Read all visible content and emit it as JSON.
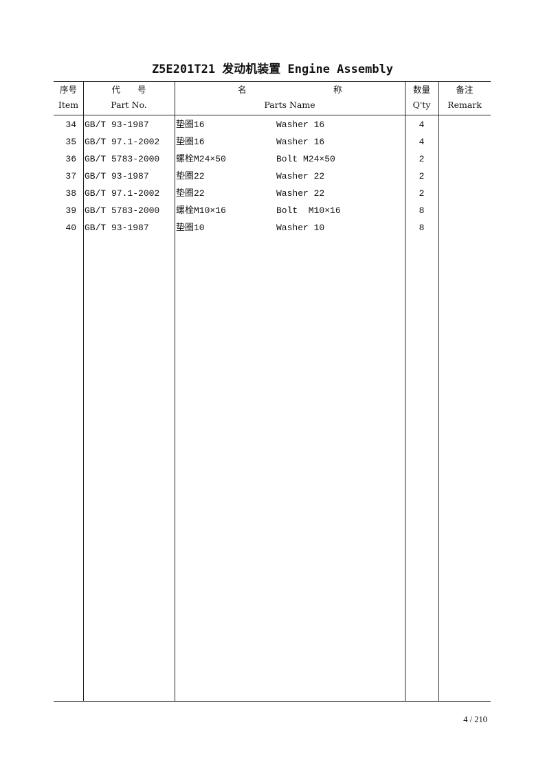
{
  "title": "Z5E201T21 发动机装置  Engine Assembly",
  "headers": {
    "item_cn": "序号",
    "item_en": "Item",
    "part_cn": "代　　号",
    "part_en": "Part No.",
    "name_cn_1": "名",
    "name_cn_2": "称",
    "name_en": "Parts Name",
    "qty_cn": "数量",
    "qty_en": "Q'ty",
    "remark_cn": "备注",
    "remark_en": "Remark"
  },
  "rows": [
    {
      "item": "34",
      "part": "GB/T 93-1987",
      "name_cn": "垫圈16",
      "name_en": "Washer 16",
      "qty": "4",
      "remark": ""
    },
    {
      "item": "35",
      "part": "GB/T 97.1-2002",
      "name_cn": "垫圈16",
      "name_en": "Washer 16",
      "qty": "4",
      "remark": ""
    },
    {
      "item": "36",
      "part": "GB/T 5783-2000",
      "name_cn": "螺栓M24×50",
      "name_en": "Bolt M24×50",
      "qty": "2",
      "remark": ""
    },
    {
      "item": "37",
      "part": "GB/T 93-1987",
      "name_cn": "垫圈22",
      "name_en": "Washer 22",
      "qty": "2",
      "remark": ""
    },
    {
      "item": "38",
      "part": "GB/T 97.1-2002",
      "name_cn": "垫圈22",
      "name_en": "Washer 22",
      "qty": "2",
      "remark": ""
    },
    {
      "item": "39",
      "part": "GB/T 5783-2000",
      "name_cn": "螺栓M10×16",
      "name_en": "Bolt  M10×16",
      "qty": "8",
      "remark": ""
    },
    {
      "item": "40",
      "part": "GB/T 93-1987",
      "name_cn": "垫圈10",
      "name_en": "Washer 10",
      "qty": "8",
      "remark": ""
    }
  ],
  "page_number": "4 / 210"
}
